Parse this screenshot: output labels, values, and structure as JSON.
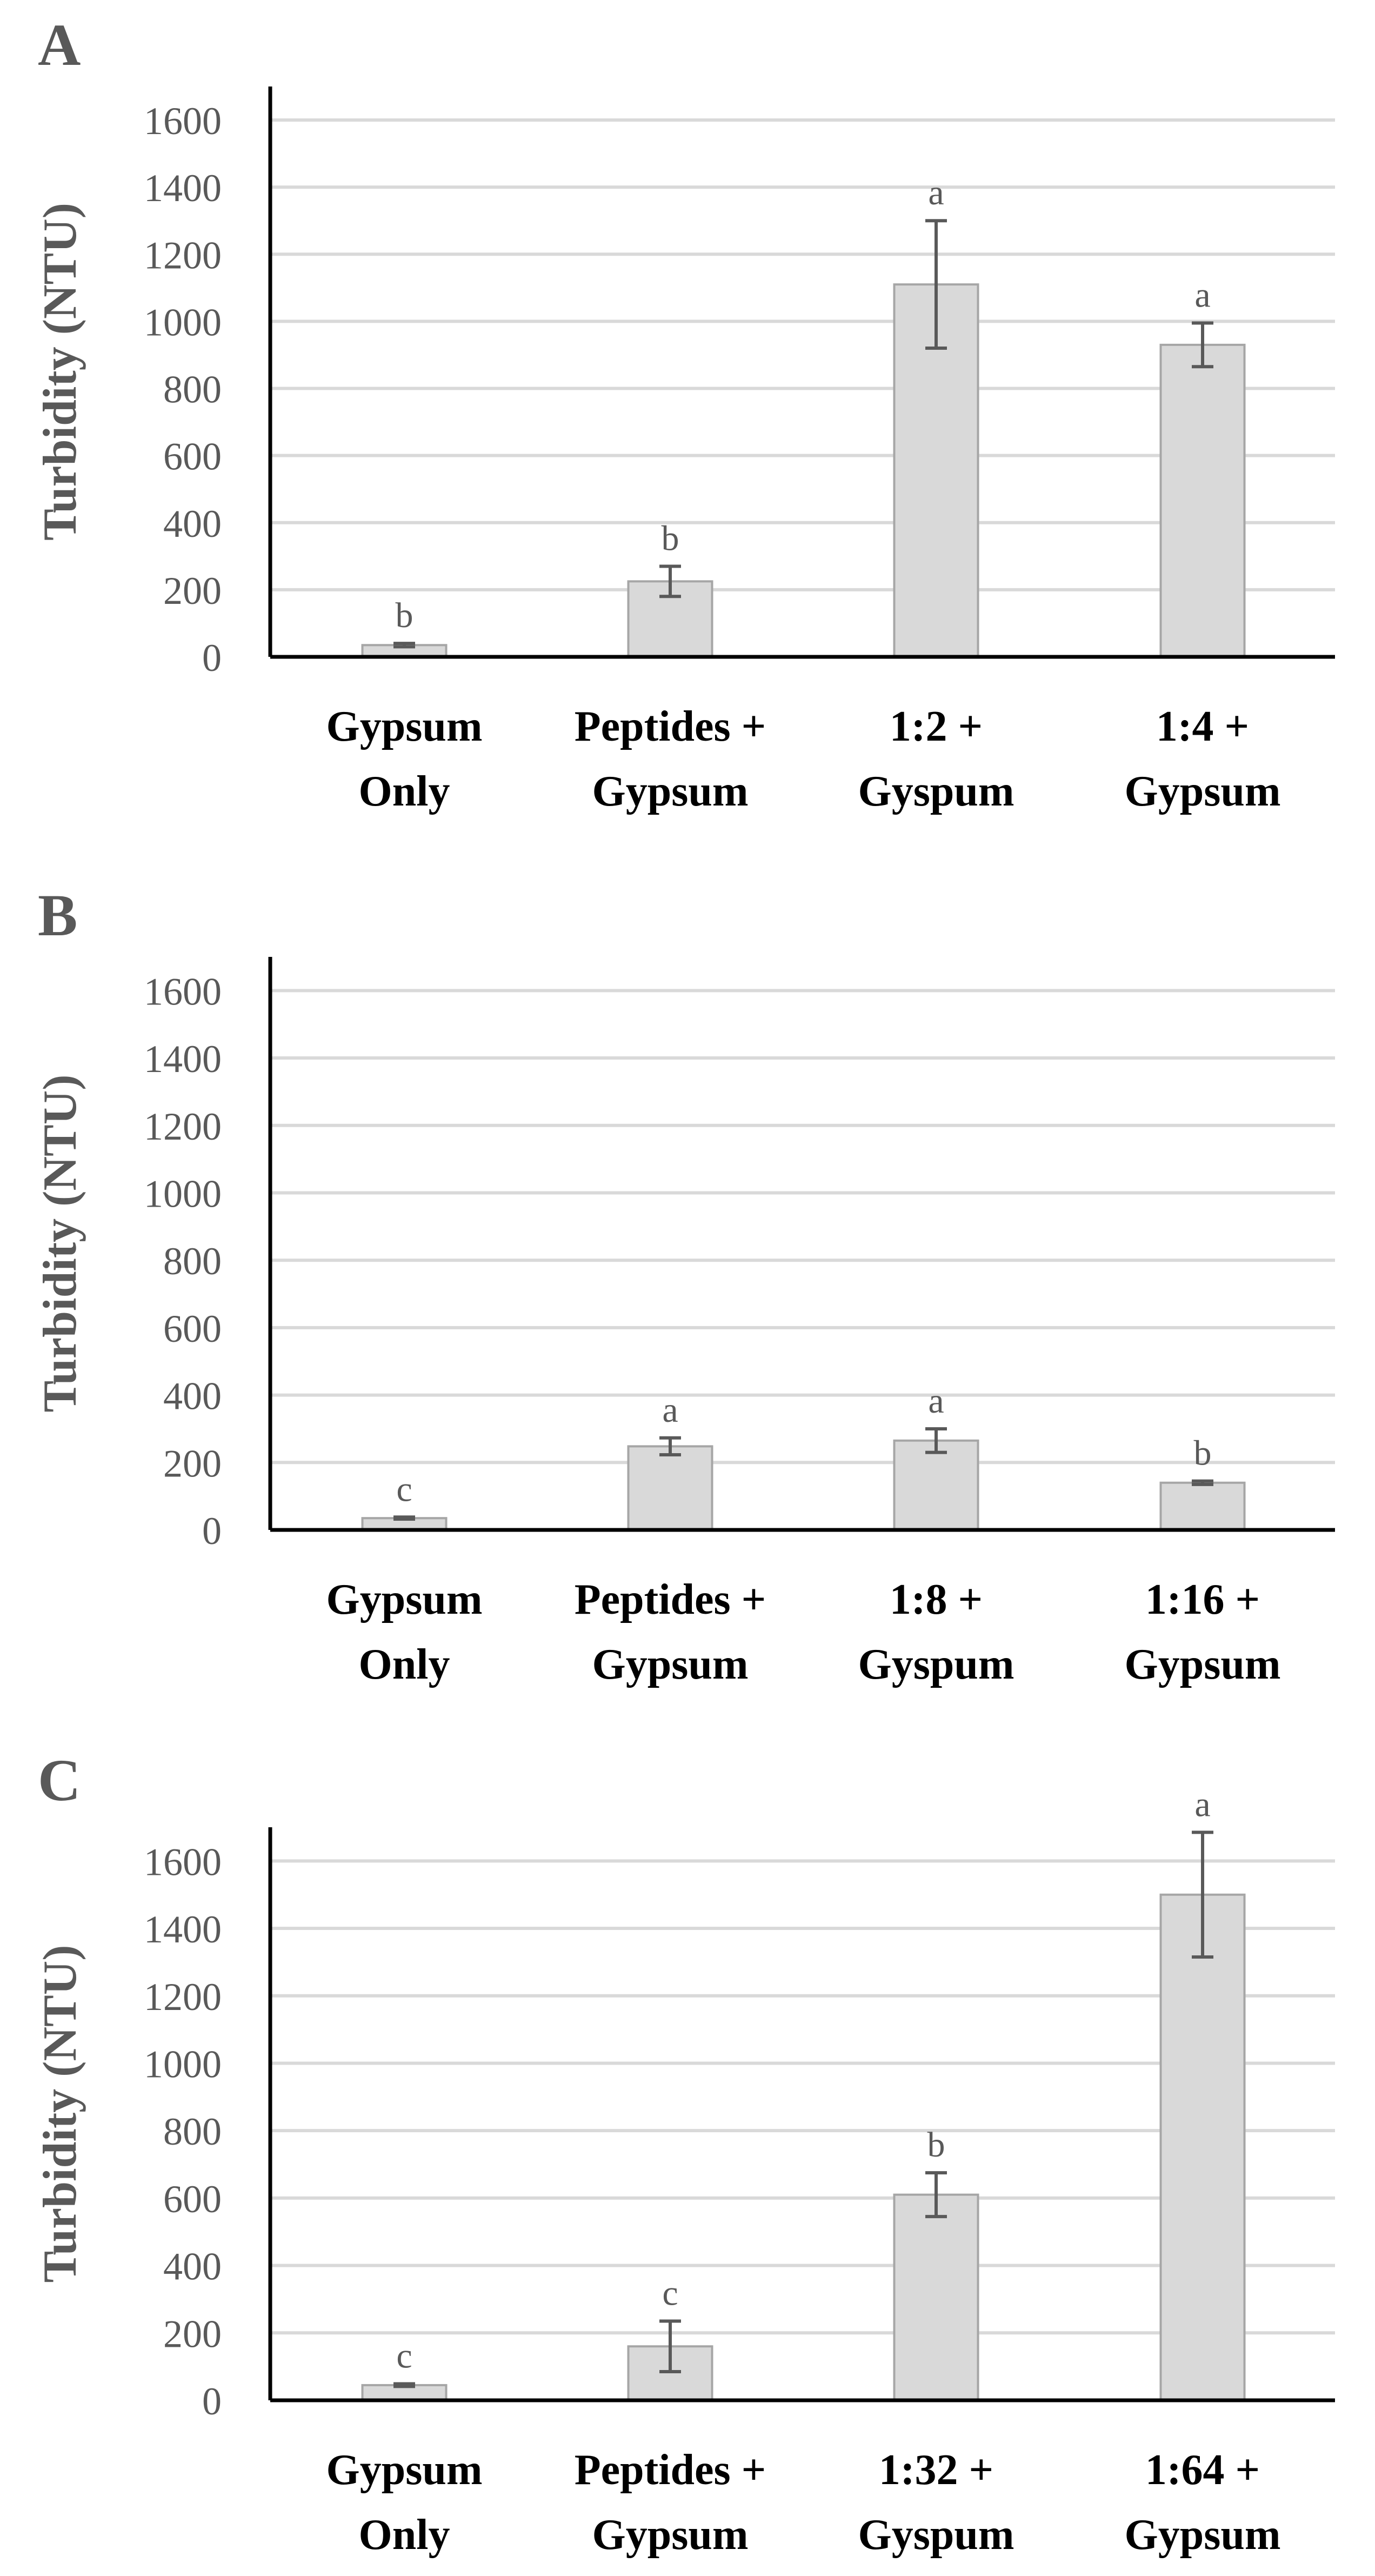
{
  "chart_data": [
    {
      "panel_label": "A",
      "type": "bar",
      "ylabel": "Turbidity (NTU)",
      "xlabel": "",
      "ylim": [
        0,
        1700
      ],
      "yticks": [
        0,
        200,
        400,
        600,
        800,
        1000,
        1200,
        1400,
        1600
      ],
      "ytick_labels": [
        "0",
        "200",
        "400",
        "600",
        "800",
        "1000",
        "1200",
        "1400",
        "1600"
      ],
      "categories": [
        [
          "Gypsum",
          "Only"
        ],
        [
          "Peptides +",
          "Gypsum"
        ],
        [
          "1:2 +",
          "Gyspum"
        ],
        [
          "1:4 +",
          "Gypsum"
        ]
      ],
      "values": [
        35,
        225,
        1110,
        930
      ],
      "errors": [
        5,
        45,
        190,
        65
      ],
      "significance": [
        "b",
        "b",
        "a",
        "a"
      ],
      "grid": true
    },
    {
      "panel_label": "B",
      "type": "bar",
      "ylabel": "Turbidity (NTU)",
      "xlabel": "",
      "ylim": [
        0,
        1700
      ],
      "yticks": [
        0,
        200,
        400,
        600,
        800,
        1000,
        1200,
        1400,
        1600
      ],
      "ytick_labels": [
        "0",
        "200",
        "400",
        "600",
        "800",
        "1000",
        "1200",
        "1400",
        "1600"
      ],
      "categories": [
        [
          "Gypsum",
          "Only"
        ],
        [
          "Peptides +",
          "Gypsum"
        ],
        [
          "1:8 +",
          "Gyspum"
        ],
        [
          "1:16 +",
          "Gypsum"
        ]
      ],
      "values": [
        35,
        248,
        265,
        140
      ],
      "errors": [
        3,
        25,
        35,
        5
      ],
      "significance": [
        "c",
        "a",
        "a",
        "b"
      ],
      "grid": true
    },
    {
      "panel_label": "C",
      "type": "bar",
      "ylabel": "Turbidity (NTU)",
      "xlabel": "",
      "ylim": [
        0,
        1700
      ],
      "yticks": [
        0,
        200,
        400,
        600,
        800,
        1000,
        1200,
        1400,
        1600
      ],
      "ytick_labels": [
        "0",
        "200",
        "400",
        "600",
        "800",
        "1000",
        "1200",
        "1400",
        "1600"
      ],
      "categories": [
        [
          "Gypsum",
          "Only"
        ],
        [
          "Peptides +",
          "Gypsum"
        ],
        [
          "1:32 +",
          "Gyspum"
        ],
        [
          "1:64 +",
          "Gypsum"
        ]
      ],
      "values": [
        45,
        160,
        610,
        1500
      ],
      "errors": [
        4,
        75,
        65,
        185
      ],
      "significance": [
        "c",
        "c",
        "b",
        "a"
      ],
      "grid": true
    }
  ],
  "colors": {
    "bar_fill": "#d9d9d9",
    "bar_edge": "#a6a6a6",
    "gridline": "#d9d9d9",
    "axis": "#000000",
    "text": "#595959",
    "category_text": "#000000",
    "error_bar": "#595959"
  }
}
